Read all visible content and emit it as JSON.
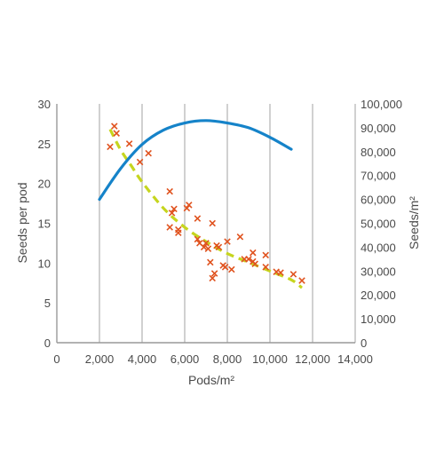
{
  "chart_data": {
    "type": "scatter",
    "title": "",
    "xlabel": "Pods/m²",
    "ylabel_left": "Seeds per pod",
    "ylabel_right": "Seeds/m²",
    "xlim": [
      0,
      14000
    ],
    "ylim_left": [
      0,
      30
    ],
    "ylim_right": [
      0,
      100000
    ],
    "x_ticks": [
      0,
      2000,
      4000,
      6000,
      8000,
      10000,
      12000,
      14000
    ],
    "x_tick_labels": [
      "0",
      "2,000",
      "4,000",
      "6,000",
      "8,000",
      "10,000",
      "12,000",
      "14,000"
    ],
    "y_left_ticks": [
      0,
      5,
      10,
      15,
      20,
      25,
      30
    ],
    "y_left_tick_labels": [
      "0",
      "5",
      "10",
      "15",
      "20",
      "25",
      "30"
    ],
    "y_right_ticks": [
      0,
      10000,
      20000,
      30000,
      40000,
      50000,
      60000,
      70000,
      80000,
      90000,
      100000
    ],
    "y_right_tick_labels": [
      "0",
      "10,000",
      "20,000",
      "30,000",
      "40,000",
      "50,000",
      "60,000",
      "70,000",
      "80,000",
      "90,000",
      "100,000"
    ],
    "grid": "vertical",
    "colors": {
      "scatter": "#e0531f",
      "trend": "#c6d51e",
      "seeds_line": "#1583c9",
      "grid": "#bdbdbd",
      "axis": "#999999",
      "text": "#4a4a4a"
    },
    "series": [
      {
        "kind": "scatter",
        "axis": "left",
        "x": [
          2500,
          2700,
          2800,
          3400,
          3900,
          4300,
          5300,
          5300,
          5400,
          5500,
          5700,
          5700,
          6100,
          6200,
          6600,
          6600,
          6700,
          6900,
          7000,
          7100,
          7200,
          7300,
          7300,
          7400,
          7500,
          7600,
          7800,
          7900,
          8000,
          8200,
          8600,
          8800,
          9000,
          9200,
          9200,
          9300,
          9800,
          9800,
          10300,
          10500,
          11100,
          11500
        ],
        "y": [
          24.6,
          27.2,
          26.3,
          25.0,
          22.7,
          23.8,
          19.0,
          14.5,
          16.3,
          16.8,
          14.2,
          13.8,
          16.9,
          17.3,
          15.6,
          13.0,
          12.5,
          12.0,
          12.5,
          11.8,
          10.1,
          15.0,
          8.1,
          8.7,
          12.2,
          12.0,
          9.7,
          9.5,
          12.7,
          9.2,
          13.3,
          10.5,
          10.5,
          11.3,
          10.2,
          9.9,
          11.0,
          9.5,
          8.9,
          8.8,
          8.6,
          7.8
        ]
      },
      {
        "kind": "trend",
        "axis": "left",
        "x": [
          2500,
          3000,
          3500,
          4000,
          5000,
          6000,
          7000,
          8000,
          9000,
          10000,
          11000,
          11500
        ],
        "y": [
          26.8,
          24.2,
          22.2,
          20.2,
          16.9,
          14.5,
          12.7,
          11.2,
          10.1,
          9.0,
          7.9,
          6.9
        ]
      },
      {
        "kind": "line",
        "axis": "right",
        "x": [
          2000,
          3000,
          4000,
          5000,
          6000,
          7000,
          8000,
          9000,
          10000,
          11000
        ],
        "y": [
          60000,
          73000,
          83000,
          89000,
          92000,
          93000,
          92000,
          90000,
          86000,
          81000
        ]
      }
    ]
  }
}
